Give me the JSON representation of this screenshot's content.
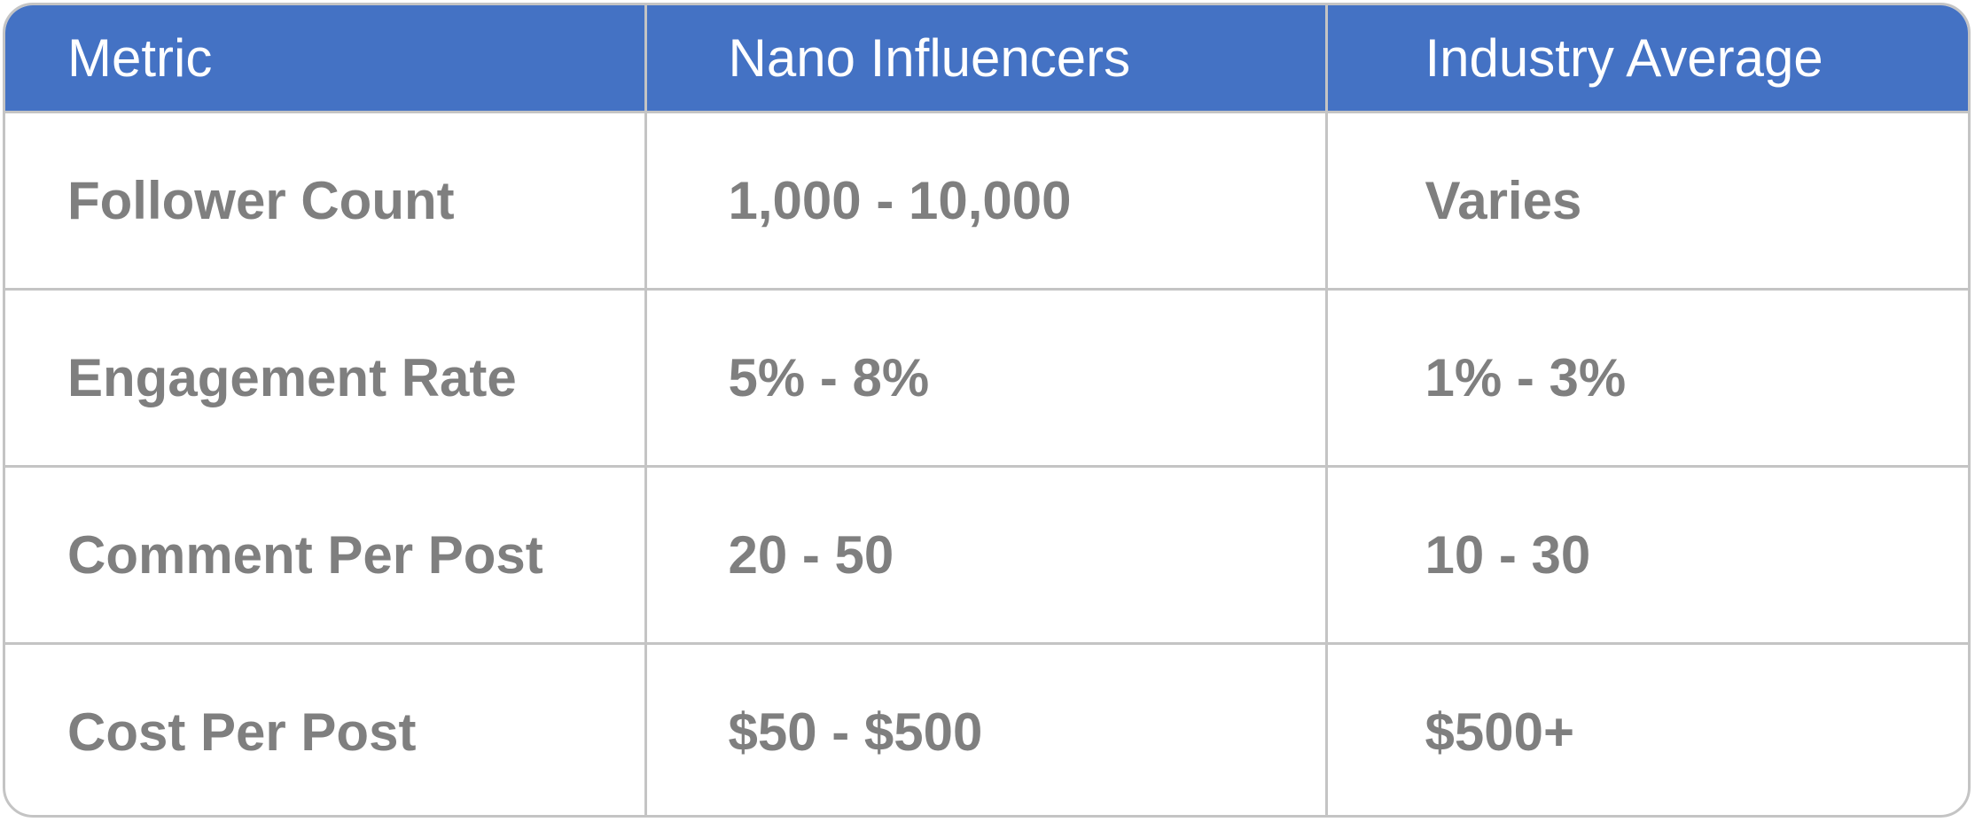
{
  "chart_data": {
    "type": "table",
    "columns": [
      "Metric",
      "Nano Influencers",
      "Industry Average"
    ],
    "rows": [
      [
        "Follower Count",
        "1,000 - 10,000",
        "Varies"
      ],
      [
        "Engagement Rate",
        "5% - 8%",
        "1% - 3%"
      ],
      [
        "Comment Per Post",
        "20 - 50",
        "10 - 30"
      ],
      [
        "Cost Per Post",
        "$50 - $500",
        "$500+"
      ]
    ]
  },
  "colors": {
    "header_background": "#4472c4",
    "header_text": "#ffffff",
    "body_text": "#7f7f7f",
    "grid_lines": "#c4c4c4"
  }
}
